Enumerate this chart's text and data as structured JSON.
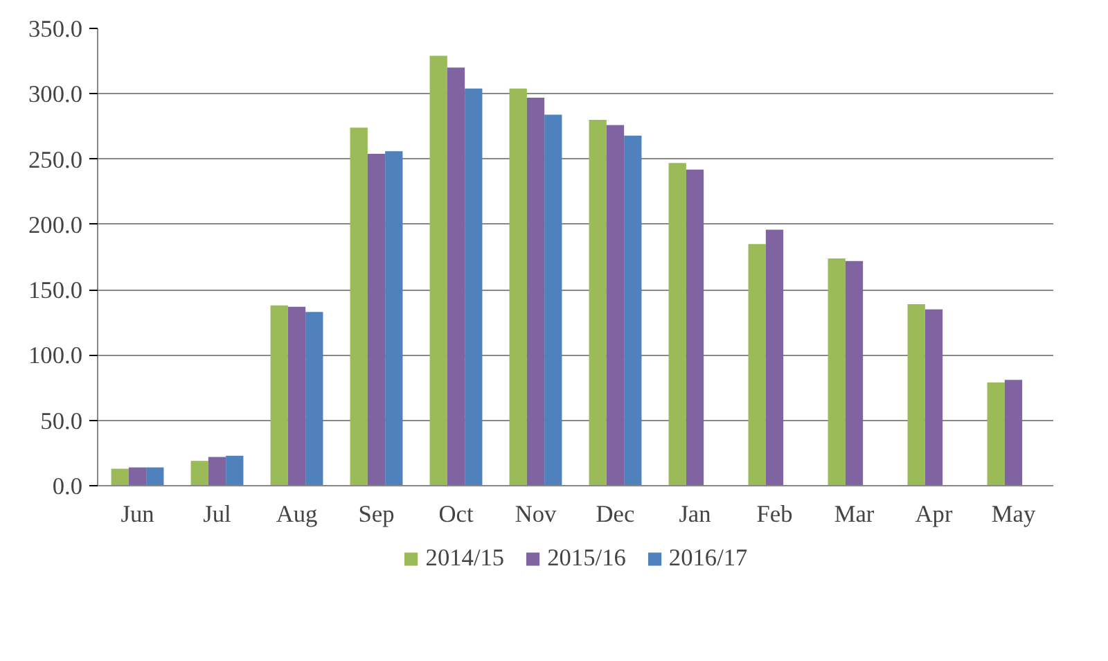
{
  "chart_data": {
    "type": "bar",
    "categories": [
      "Jun",
      "Jul",
      "Aug",
      "Sep",
      "Oct",
      "Nov",
      "Dec",
      "Jan",
      "Feb",
      "Mar",
      "Apr",
      "May"
    ],
    "series": [
      {
        "name": "2014/15",
        "color": "#9bbb59",
        "values": [
          13,
          19,
          138,
          274,
          329,
          304,
          280,
          247,
          185,
          174,
          139,
          79
        ]
      },
      {
        "name": "2015/16",
        "color": "#8064a2",
        "values": [
          14,
          22,
          137,
          254,
          320,
          297,
          276,
          242,
          196,
          172,
          135,
          81
        ]
      },
      {
        "name": "2016/17",
        "color": "#4f81bd",
        "values": [
          14,
          23,
          133,
          256,
          304,
          284,
          268,
          null,
          null,
          null,
          null,
          null
        ]
      }
    ],
    "ylim": [
      0,
      350
    ],
    "yticks": [
      {
        "value": 0,
        "label": "0.0"
      },
      {
        "value": 50,
        "label": "50.0"
      },
      {
        "value": 100,
        "label": "100.0"
      },
      {
        "value": 150,
        "label": "150.0"
      },
      {
        "value": 200,
        "label": "200.0"
      },
      {
        "value": 250,
        "label": "250.0"
      },
      {
        "value": 300,
        "label": "300.0"
      },
      {
        "value": 350,
        "label": "350.0"
      }
    ],
    "grid": "y",
    "legend": "bottom"
  }
}
